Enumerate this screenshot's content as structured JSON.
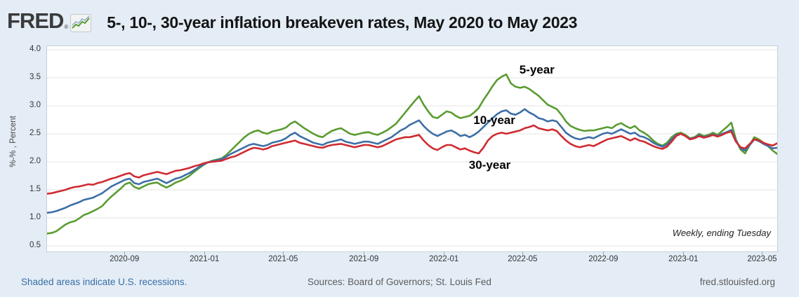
{
  "header": {
    "logo_text": "FRED",
    "reg_mark": "®",
    "title": "5-, 10-, 30-year inflation breakeven rates, May 2020 to May 2023"
  },
  "footer": {
    "recessions_note": "Shaded areas indicate U.S. recessions.",
    "sources": "Sources: Board of Governors; St. Louis Fed",
    "site": "fred.stlouisfed.org"
  },
  "colors": {
    "page_bg": "#e4edf6",
    "plot_bg": "#ffffff",
    "grid": "#e3e3e3",
    "green_5yr": "#5a9c31",
    "blue_10yr": "#3e6fa6",
    "red_30yr": "#cf2b31",
    "link_blue": "#3a6ea5"
  },
  "chart_data": {
    "type": "line",
    "title": "5-, 10-, 30-year inflation breakeven rates, May 2020 to May 2023",
    "ylabel": "%-% , Percent",
    "frequency_note": "Weekly, ending Tuesday",
    "x_start": "2020-05-05",
    "x_end": "2023-05-23",
    "frequency": "weekly",
    "n_points": 160,
    "ylim": [
      0.4,
      4.0625
    ],
    "grid": true,
    "y_ticks": [
      "4.0",
      "3.5",
      "3.0",
      "2.5",
      "2.0",
      "1.5",
      "1.0",
      "0.5"
    ],
    "y_tick_values": [
      4.0,
      3.5,
      3.0,
      2.5,
      2.0,
      1.5,
      1.0,
      0.5
    ],
    "x_ticks": [
      {
        "label": "2020-09",
        "week": 17.0
      },
      {
        "label": "2021-01",
        "week": 34.43
      },
      {
        "label": "2021-05",
        "week": 51.57
      },
      {
        "label": "2021-09",
        "week": 69.14
      },
      {
        "label": "2022-01",
        "week": 86.57
      },
      {
        "label": "2022-05",
        "week": 103.71
      },
      {
        "label": "2022-09",
        "week": 121.29
      },
      {
        "label": "2023-01",
        "week": 138.71
      },
      {
        "label": "2023-05",
        "week": 155.86
      }
    ],
    "annotations": [
      {
        "label": "5-year",
        "week": 103,
        "value": 3.62
      },
      {
        "label": "10-year",
        "week": 93,
        "value": 2.72
      },
      {
        "label": "30-year",
        "week": 92,
        "value": 1.93
      }
    ],
    "series": [
      {
        "name": "5-year",
        "color": "#5a9c31",
        "values": [
          0.72,
          0.73,
          0.76,
          0.82,
          0.88,
          0.92,
          0.94,
          0.99,
          1.05,
          1.08,
          1.12,
          1.16,
          1.21,
          1.3,
          1.38,
          1.45,
          1.52,
          1.6,
          1.63,
          1.55,
          1.52,
          1.56,
          1.6,
          1.62,
          1.63,
          1.58,
          1.54,
          1.58,
          1.63,
          1.66,
          1.7,
          1.75,
          1.82,
          1.88,
          1.94,
          1.99,
          2.02,
          2.04,
          2.06,
          2.12,
          2.2,
          2.28,
          2.36,
          2.44,
          2.5,
          2.54,
          2.56,
          2.52,
          2.5,
          2.54,
          2.56,
          2.58,
          2.61,
          2.68,
          2.72,
          2.66,
          2.6,
          2.55,
          2.5,
          2.46,
          2.44,
          2.5,
          2.55,
          2.58,
          2.6,
          2.55,
          2.5,
          2.48,
          2.5,
          2.52,
          2.53,
          2.5,
          2.48,
          2.52,
          2.56,
          2.62,
          2.68,
          2.78,
          2.88,
          2.98,
          3.08,
          3.17,
          3.02,
          2.9,
          2.8,
          2.78,
          2.84,
          2.9,
          2.88,
          2.82,
          2.78,
          2.8,
          2.82,
          2.88,
          2.96,
          3.1,
          3.22,
          3.35,
          3.46,
          3.52,
          3.56,
          3.4,
          3.34,
          3.32,
          3.34,
          3.3,
          3.24,
          3.18,
          3.1,
          3.02,
          2.98,
          2.94,
          2.84,
          2.72,
          2.64,
          2.6,
          2.57,
          2.55,
          2.56,
          2.56,
          2.58,
          2.6,
          2.62,
          2.6,
          2.66,
          2.69,
          2.64,
          2.6,
          2.64,
          2.56,
          2.52,
          2.46,
          2.38,
          2.32,
          2.29,
          2.34,
          2.44,
          2.5,
          2.52,
          2.48,
          2.42,
          2.44,
          2.5,
          2.46,
          2.48,
          2.52,
          2.48,
          2.55,
          2.62,
          2.7,
          2.4,
          2.22,
          2.15,
          2.3,
          2.44,
          2.4,
          2.34,
          2.28,
          2.2,
          2.14
        ]
      },
      {
        "name": "10-year",
        "color": "#3e6fa6",
        "values": [
          1.09,
          1.1,
          1.12,
          1.15,
          1.18,
          1.22,
          1.25,
          1.28,
          1.32,
          1.34,
          1.36,
          1.4,
          1.44,
          1.5,
          1.56,
          1.6,
          1.64,
          1.68,
          1.7,
          1.62,
          1.6,
          1.64,
          1.66,
          1.68,
          1.7,
          1.66,
          1.62,
          1.66,
          1.7,
          1.72,
          1.76,
          1.8,
          1.85,
          1.9,
          1.95,
          1.99,
          2.01,
          2.03,
          2.05,
          2.09,
          2.14,
          2.18,
          2.22,
          2.26,
          2.3,
          2.32,
          2.3,
          2.28,
          2.3,
          2.34,
          2.36,
          2.38,
          2.42,
          2.48,
          2.52,
          2.46,
          2.42,
          2.38,
          2.34,
          2.32,
          2.3,
          2.34,
          2.36,
          2.38,
          2.4,
          2.36,
          2.34,
          2.32,
          2.34,
          2.36,
          2.36,
          2.34,
          2.32,
          2.36,
          2.4,
          2.44,
          2.5,
          2.56,
          2.6,
          2.66,
          2.7,
          2.74,
          2.64,
          2.56,
          2.5,
          2.46,
          2.5,
          2.54,
          2.56,
          2.52,
          2.46,
          2.48,
          2.44,
          2.48,
          2.54,
          2.62,
          2.7,
          2.78,
          2.85,
          2.9,
          2.92,
          2.86,
          2.84,
          2.88,
          2.94,
          2.88,
          2.84,
          2.78,
          2.76,
          2.72,
          2.74,
          2.72,
          2.62,
          2.52,
          2.46,
          2.42,
          2.4,
          2.42,
          2.44,
          2.42,
          2.46,
          2.5,
          2.52,
          2.5,
          2.54,
          2.58,
          2.54,
          2.5,
          2.52,
          2.46,
          2.44,
          2.4,
          2.34,
          2.3,
          2.27,
          2.31,
          2.4,
          2.48,
          2.5,
          2.46,
          2.41,
          2.43,
          2.47,
          2.44,
          2.46,
          2.49,
          2.46,
          2.5,
          2.53,
          2.57,
          2.38,
          2.24,
          2.2,
          2.3,
          2.4,
          2.37,
          2.32,
          2.28,
          2.24,
          2.25
        ]
      },
      {
        "name": "30-year",
        "color": "#cf2b31",
        "values": [
          1.43,
          1.44,
          1.46,
          1.48,
          1.5,
          1.53,
          1.55,
          1.56,
          1.58,
          1.6,
          1.59,
          1.62,
          1.64,
          1.67,
          1.7,
          1.72,
          1.75,
          1.78,
          1.8,
          1.74,
          1.72,
          1.76,
          1.78,
          1.8,
          1.82,
          1.8,
          1.78,
          1.81,
          1.84,
          1.85,
          1.87,
          1.89,
          1.92,
          1.94,
          1.97,
          1.99,
          2.0,
          2.01,
          2.02,
          2.05,
          2.08,
          2.1,
          2.14,
          2.18,
          2.22,
          2.25,
          2.24,
          2.22,
          2.24,
          2.28,
          2.3,
          2.32,
          2.34,
          2.36,
          2.38,
          2.34,
          2.32,
          2.3,
          2.28,
          2.26,
          2.25,
          2.28,
          2.3,
          2.31,
          2.32,
          2.3,
          2.28,
          2.26,
          2.28,
          2.3,
          2.3,
          2.28,
          2.26,
          2.28,
          2.32,
          2.36,
          2.4,
          2.42,
          2.44,
          2.44,
          2.46,
          2.48,
          2.38,
          2.3,
          2.24,
          2.21,
          2.26,
          2.3,
          2.3,
          2.26,
          2.22,
          2.24,
          2.2,
          2.17,
          2.15,
          2.25,
          2.38,
          2.46,
          2.5,
          2.52,
          2.5,
          2.52,
          2.54,
          2.56,
          2.6,
          2.62,
          2.65,
          2.6,
          2.58,
          2.56,
          2.58,
          2.55,
          2.46,
          2.38,
          2.32,
          2.28,
          2.26,
          2.28,
          2.3,
          2.28,
          2.32,
          2.36,
          2.4,
          2.42,
          2.44,
          2.46,
          2.42,
          2.38,
          2.42,
          2.38,
          2.36,
          2.32,
          2.28,
          2.25,
          2.23,
          2.27,
          2.36,
          2.46,
          2.5,
          2.46,
          2.4,
          2.42,
          2.46,
          2.43,
          2.45,
          2.48,
          2.45,
          2.48,
          2.52,
          2.54,
          2.36,
          2.26,
          2.24,
          2.32,
          2.4,
          2.38,
          2.34,
          2.31,
          2.29,
          2.33
        ]
      }
    ]
  }
}
